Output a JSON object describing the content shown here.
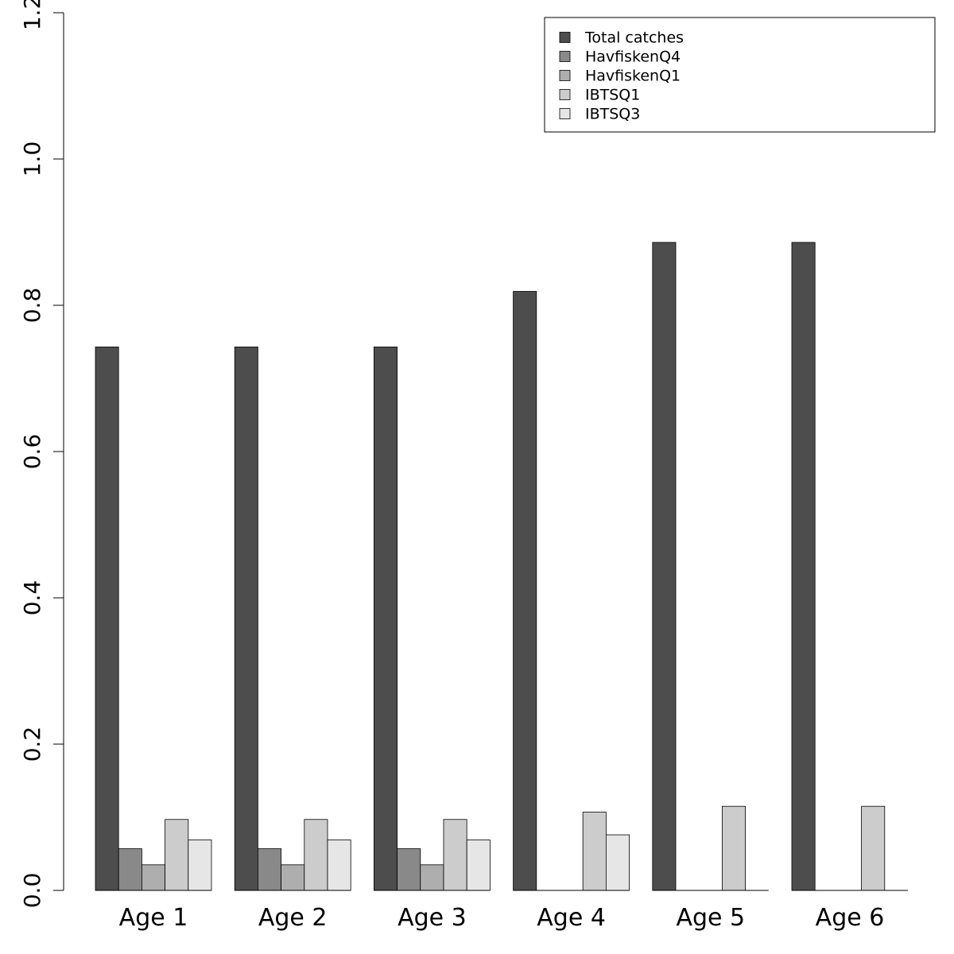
{
  "chart_data": {
    "type": "bar",
    "title": "",
    "xlabel": "",
    "ylabel": "",
    "categories": [
      "Age 1",
      "Age 2",
      "Age 3",
      "Age 4",
      "Age 5",
      "Age 6"
    ],
    "ylim": [
      0,
      1.2
    ],
    "yticks": [
      "0.0",
      "0.2",
      "0.4",
      "0.6",
      "0.8",
      "1.0",
      "1.2"
    ],
    "grid": false,
    "legend_position": "top-right",
    "series": [
      {
        "name": "Total catches",
        "color": "#4d4d4d",
        "values": [
          0.743,
          0.743,
          0.743,
          0.819,
          0.886,
          0.886
        ]
      },
      {
        "name": "HavfiskenQ4",
        "color": "#898989",
        "values": [
          0.057,
          0.057,
          0.057,
          0,
          0,
          0
        ]
      },
      {
        "name": "HavfiskenQ1",
        "color": "#aeaeae",
        "values": [
          0.035,
          0.035,
          0.035,
          0,
          0,
          0
        ]
      },
      {
        "name": "IBTSQ1",
        "color": "#cccccc",
        "values": [
          0.097,
          0.097,
          0.097,
          0.107,
          0.115,
          0.115
        ]
      },
      {
        "name": "IBTSQ3",
        "color": "#e6e6e6",
        "values": [
          0.069,
          0.069,
          0.069,
          0.076,
          0,
          0
        ]
      }
    ]
  }
}
